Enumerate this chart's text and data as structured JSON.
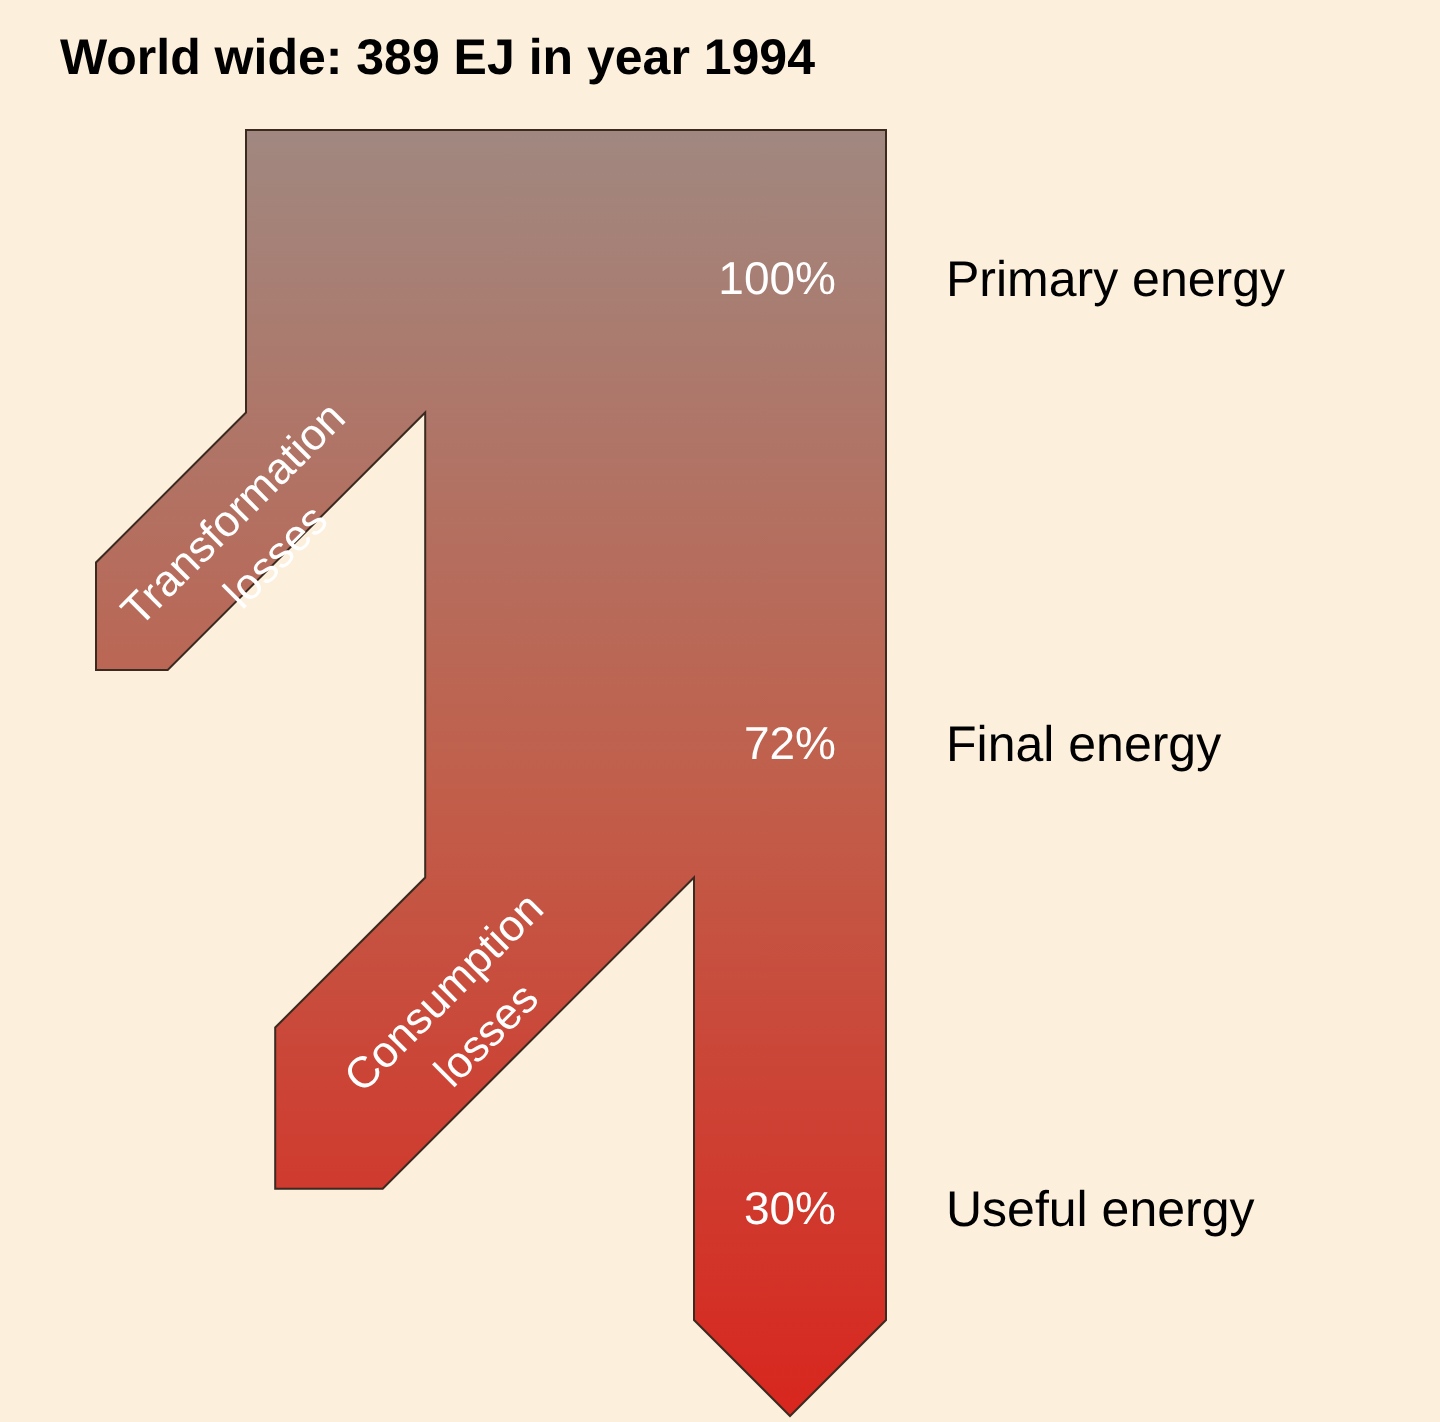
{
  "chart_data": {
    "type": "other",
    "title": "World wide: 389 EJ in year 1994",
    "categories": [
      "Primary energy",
      "Final energy",
      "Useful energy"
    ],
    "values": [
      100,
      72,
      30
    ],
    "value_labels": [
      "100%",
      "72%",
      "30%"
    ],
    "annotations": [
      "Transformation losses",
      "Consumption losses"
    ]
  }
}
